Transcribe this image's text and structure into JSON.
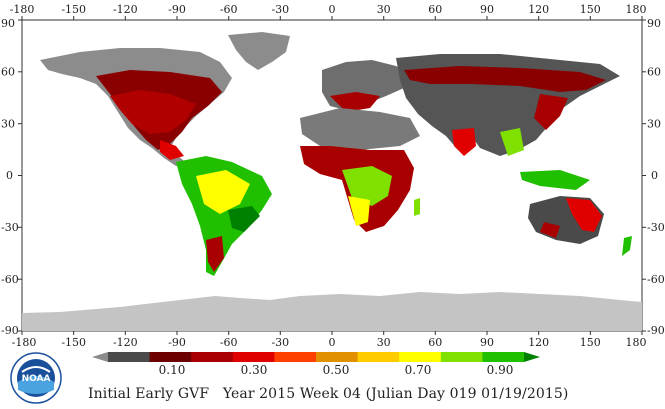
{
  "map": {
    "lon_ticks": [
      "-180",
      "-150",
      "-120",
      "-90",
      "-60",
      "-30",
      "0",
      "30",
      "60",
      "90",
      "120",
      "150",
      "180"
    ],
    "lat_ticks": [
      "90",
      "60",
      "30",
      "0",
      "-30",
      "-60",
      "-90"
    ],
    "lon_range": [
      -180,
      180
    ],
    "lat_range": [
      -90,
      90
    ]
  },
  "legend": {
    "labels": [
      "0.10",
      "0.30",
      "0.50",
      "0.70",
      "0.90"
    ],
    "colors": [
      "#8c8c8c",
      "#4a4a4a",
      "#6b0000",
      "#a80000",
      "#e00000",
      "#ff4000",
      "#e09000",
      "#ffcc00",
      "#ffff00",
      "#80e000",
      "#20c000",
      "#008000"
    ]
  },
  "caption": {
    "product": "Initial Early GVF",
    "year": "Year 2015",
    "week": "Week 04",
    "julian": "(Julian Day 019 01/19/2015)"
  },
  "logo": {
    "text": "NOAA"
  }
}
